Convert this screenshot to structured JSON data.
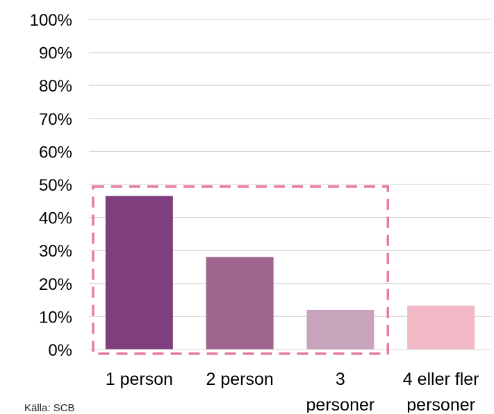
{
  "chart_data": {
    "type": "bar",
    "categories": [
      [
        "1 person"
      ],
      [
        "2 person"
      ],
      [
        "3",
        "personer"
      ],
      [
        "4 eller fler",
        "personer"
      ]
    ],
    "values": [
      46.5,
      28,
      12,
      13.3
    ],
    "ylim": [
      0,
      100
    ],
    "yticks": [
      0,
      10,
      20,
      30,
      40,
      50,
      60,
      70,
      80,
      90,
      100
    ],
    "ytick_labels": [
      "0%",
      "10%",
      "20%",
      "30%",
      "40%",
      "50%",
      "60%",
      "70%",
      "80%",
      "90%",
      "100%"
    ],
    "colors": [
      "#7f3f7e",
      "#a0658d",
      "#c8a3bc",
      "#f1b9c6"
    ],
    "grid": true,
    "legend": "none",
    "highlight": {
      "categories": [
        "1 person",
        "2 person",
        "3 personer"
      ],
      "color": "#e87c9c",
      "style": "dashed"
    }
  },
  "source": "Källa: SCB"
}
